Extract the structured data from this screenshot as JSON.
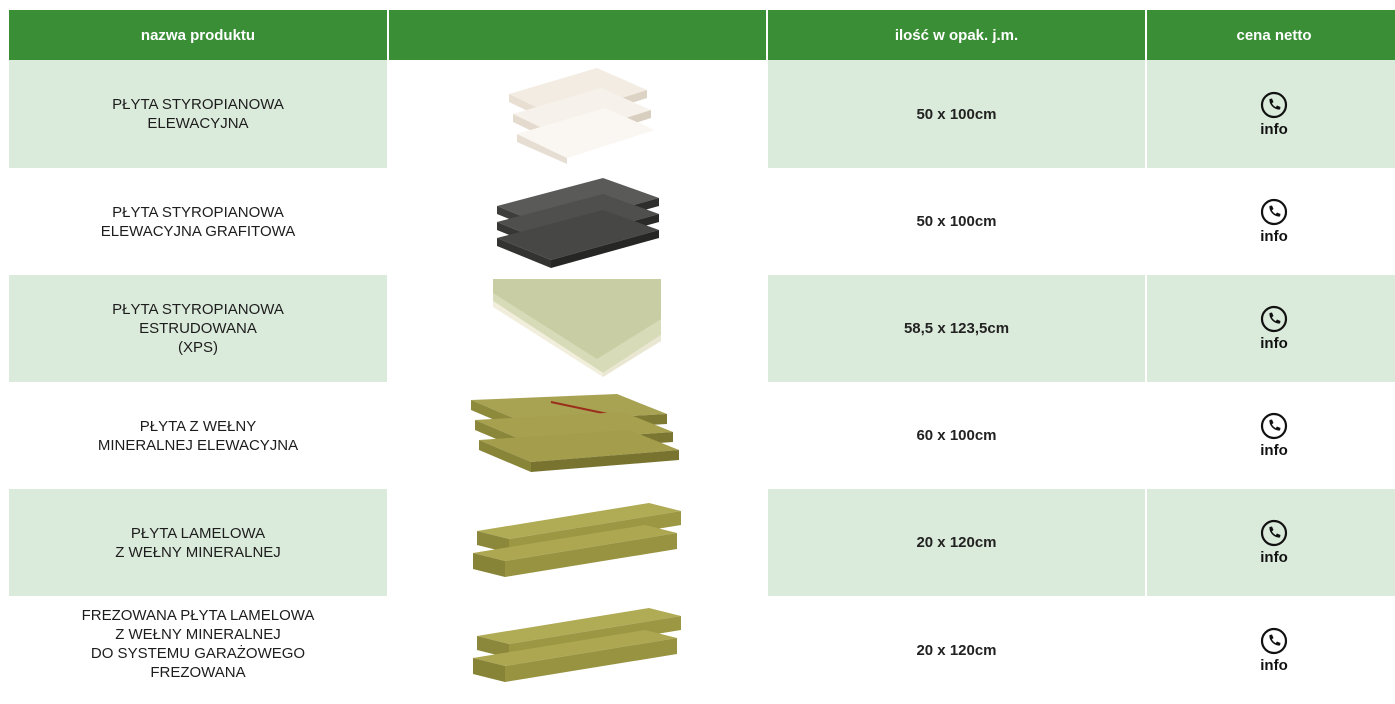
{
  "header": {
    "col_name": "nazwa produktu",
    "col_image": "",
    "col_qty": "ilość w opak. j.m.",
    "col_price": "cena netto"
  },
  "colors": {
    "header_bg": "#3a8f36",
    "row_alt_bg": "#dbebdb",
    "header_text": "#ffffff"
  },
  "rows": [
    {
      "name_lines": [
        "PŁYTA STYROPIANOWA",
        "ELEWACYJNA"
      ],
      "image": "white-eps-board-icon",
      "qty": "50 x 100cm",
      "price_label": "info",
      "price_icon": "phone-icon"
    },
    {
      "name_lines": [
        "PŁYTA STYROPIANOWA",
        "ELEWACYJNA GRAFITOWA"
      ],
      "image": "graphite-eps-board-icon",
      "qty": "50 x 100cm",
      "price_label": "info",
      "price_icon": "phone-icon"
    },
    {
      "name_lines": [
        "PŁYTA STYROPIANOWA",
        "ESTRUDOWANA",
        "(XPS)"
      ],
      "image": "xps-board-icon",
      "qty": "58,5 x 123,5cm",
      "price_label": "info",
      "price_icon": "phone-icon"
    },
    {
      "name_lines": [
        "PŁYTA Z WEŁNY",
        "MINERALNEJ ELEWACYJNA"
      ],
      "image": "mineral-wool-board-icon",
      "qty": "60 x 100cm",
      "price_label": "info",
      "price_icon": "phone-icon"
    },
    {
      "name_lines": [
        "PŁYTA LAMELOWA",
        "Z WEŁNY MINERALNEJ"
      ],
      "image": "lamella-board-icon",
      "qty": "20 x 120cm",
      "price_label": "info",
      "price_icon": "phone-icon"
    },
    {
      "name_lines": [
        "FREZOWANA PŁYTA LAMELOWA",
        "Z WEŁNY MINERALNEJ",
        "DO SYSTEMU GARAŻOWEGO",
        "FREZOWANA"
      ],
      "image": "milled-lamella-board-icon",
      "qty": "20 x 120cm",
      "price_label": "info",
      "price_icon": "phone-icon"
    }
  ]
}
